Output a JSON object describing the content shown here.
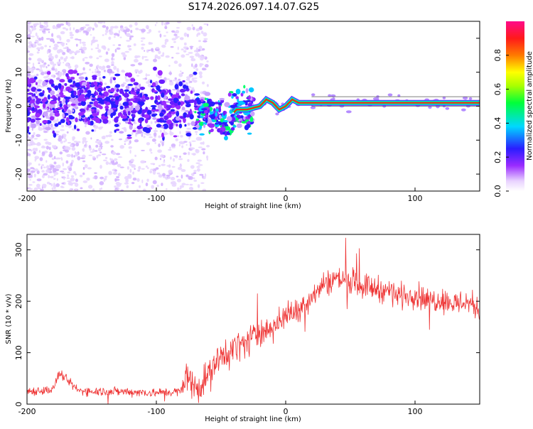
{
  "page_title": "S174.2026.097.14.07.G25",
  "colors": {
    "snr_line": "#ee3333",
    "frame": "#000000",
    "background": "#ffffff"
  },
  "chart_data": [
    {
      "type": "heatmap",
      "title": "S174.2026.097.14.07.G25",
      "xlabel": "Height of straight line (km)",
      "ylabel": "Frequency (Hz)",
      "xlim": [
        -200,
        150
      ],
      "ylim": [
        -25,
        25
      ],
      "x_tick_values": [
        -200,
        -100,
        0,
        100
      ],
      "x_tick_labels": [
        "-200",
        "-100",
        "0",
        "100"
      ],
      "y_tick_values": [
        -20,
        -10,
        0,
        10,
        20
      ],
      "y_tick_labels": [
        "-20",
        "-10",
        "0",
        "10",
        "20"
      ],
      "ridge_points": [
        {
          "x": -200,
          "y": 1
        },
        {
          "x": -150,
          "y": 1
        },
        {
          "x": -100,
          "y": 0
        },
        {
          "x": -70,
          "y": -1
        },
        {
          "x": -55,
          "y": -3
        },
        {
          "x": -45,
          "y": -4
        },
        {
          "x": -38,
          "y": -1
        },
        {
          "x": -30,
          "y": -1
        },
        {
          "x": -20,
          "y": 0
        },
        {
          "x": -15,
          "y": 2
        },
        {
          "x": -10,
          "y": 1
        },
        {
          "x": -5,
          "y": -1
        },
        {
          "x": 0,
          "y": 0
        },
        {
          "x": 5,
          "y": 2
        },
        {
          "x": 10,
          "y": 1
        },
        {
          "x": 20,
          "y": 1
        },
        {
          "x": 100,
          "y": 1
        },
        {
          "x": 150,
          "y": 1
        }
      ],
      "colorbar": {
        "label": "Normalized spectral amplitude",
        "range": [
          0,
          1
        ],
        "tick_values": [
          0,
          0.2,
          0.4,
          0.6,
          0.8
        ],
        "tick_labels": [
          "0.0",
          "0.2",
          "0.4",
          "0.6",
          "0.8"
        ],
        "colormap": "rainbow (white-violet-blue-cyan-green-yellow-red-magenta)"
      }
    },
    {
      "type": "line",
      "xlabel": "Height of straight line (km)",
      "ylabel": "SNR (10 * v/v)",
      "xlim": [
        -200,
        150
      ],
      "ylim": [
        0,
        330
      ],
      "x_tick_values": [
        -200,
        -100,
        0,
        100
      ],
      "x_tick_labels": [
        "-200",
        "-100",
        "0",
        "100"
      ],
      "y_tick_values": [
        0,
        100,
        200,
        300
      ],
      "y_tick_labels": [
        "0",
        "100",
        "200",
        "300"
      ],
      "series": [
        {
          "name": "SNR",
          "x": [
            -200,
            -180,
            -175,
            -160,
            -140,
            -120,
            -100,
            -80,
            -77,
            -70,
            -60,
            -50,
            -40,
            -30,
            -20,
            -10,
            0,
            10,
            20,
            30,
            40,
            50,
            60,
            70,
            80,
            90,
            100,
            110,
            120,
            130,
            140,
            150
          ],
          "y": [
            25,
            28,
            60,
            26,
            25,
            24,
            22,
            25,
            60,
            30,
            55,
            90,
            110,
            120,
            140,
            150,
            170,
            185,
            210,
            235,
            245,
            240,
            230,
            225,
            220,
            210,
            215,
            200,
            205,
            195,
            200,
            185
          ]
        }
      ]
    }
  ]
}
